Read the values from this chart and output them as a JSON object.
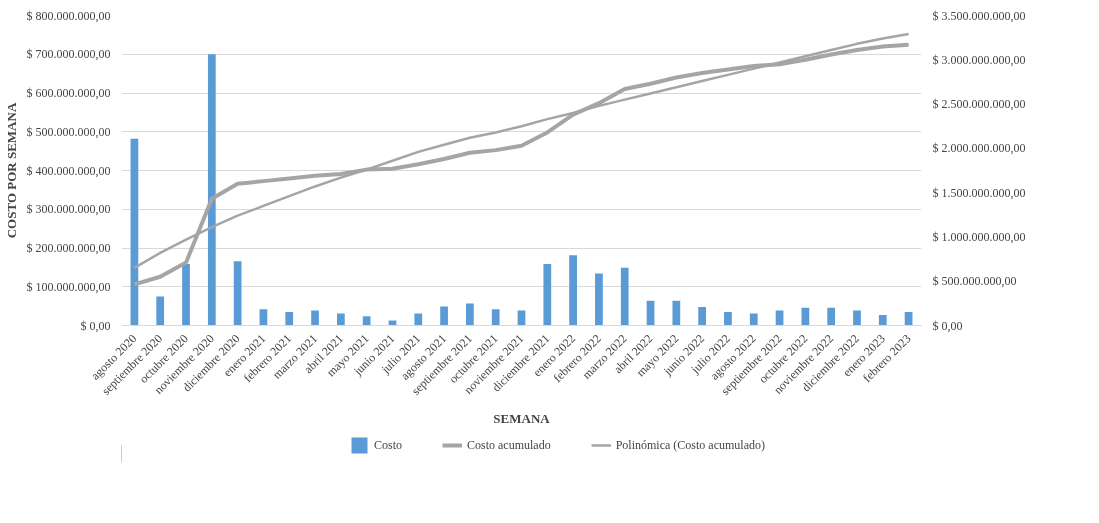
{
  "chart_data": {
    "type": "bar",
    "xlabel": "SEMANA",
    "ylabel": "COSTO POR SEMANA",
    "categories": [
      "agosto 2020",
      "septiembre 2020",
      "octubre 2020",
      "noviembre 2020",
      "diciembre 2020",
      "enero 2021",
      "febrero 2021",
      "marzo 2021",
      "abril 2021",
      "mayo 2021",
      "junio 2021",
      "julio 2021",
      "agosto 2021",
      "septiembre 2021",
      "octubre 2021",
      "noviembre 2021",
      "diciembre 2021",
      "enero 2022",
      "febrero 2022",
      "marzo 2022",
      "abril 2022",
      "mayo 2022",
      "junio 2022",
      "julio 2022",
      "agosto 2022",
      "septiembre 2022",
      "octubre 2022",
      "noviembre 2022",
      "diciembre 2022",
      "enero 2023",
      "febrero 2023"
    ],
    "series": [
      {
        "name": "Costo",
        "color": "#5b9bd5",
        "values": [
          482000000,
          75000000,
          159000000,
          700000000,
          166000000,
          42000000,
          35000000,
          39000000,
          31000000,
          24000000,
          13000000,
          31000000,
          49000000,
          57000000,
          42000000,
          39000000,
          159000000,
          181000000,
          134000000,
          149000000,
          64000000,
          64000000,
          48000000,
          35000000,
          31000000,
          39000000,
          46000000,
          46000000,
          39000000,
          27000000,
          35000000
        ]
      },
      {
        "name": "Costo acumulado",
        "type": "line",
        "axis": "y2",
        "color": "#a5a5a5",
        "values": [
          465000000,
          550000000,
          710000000,
          1430000000,
          1600000000,
          1630000000,
          1660000000,
          1690000000,
          1710000000,
          1760000000,
          1770000000,
          1820000000,
          1880000000,
          1950000000,
          1980000000,
          2030000000,
          2180000000,
          2380000000,
          2510000000,
          2670000000,
          2730000000,
          2800000000,
          2850000000,
          2890000000,
          2930000000,
          2950000000,
          3000000000,
          3060000000,
          3110000000,
          3150000000,
          3170000000
        ]
      },
      {
        "name": "Polinómica (Costo acumulado)",
        "type": "line",
        "axis": "y2",
        "color": "#a5a5a5",
        "values": [
          650000000,
          820000000,
          970000000,
          1110000000,
          1240000000,
          1350000000,
          1460000000,
          1570000000,
          1670000000,
          1760000000,
          1860000000,
          1960000000,
          2040000000,
          2120000000,
          2180000000,
          2250000000,
          2330000000,
          2400000000,
          2480000000,
          2550000000,
          2620000000,
          2690000000,
          2760000000,
          2830000000,
          2900000000,
          2970000000,
          3040000000,
          3110000000,
          3180000000,
          3240000000,
          3290000000
        ]
      }
    ],
    "ylim": [
      0,
      800000000
    ],
    "yticks": [
      {
        "value": 0,
        "label": "$ 0,00"
      },
      {
        "value": 100000000,
        "label": "$ 100.000.000,00"
      },
      {
        "value": 200000000,
        "label": "$ 200.000.000,00"
      },
      {
        "value": 300000000,
        "label": "$ 300.000.000,00"
      },
      {
        "value": 400000000,
        "label": "$ 400.000.000,00"
      },
      {
        "value": 500000000,
        "label": "$ 500.000.000,00"
      },
      {
        "value": 600000000,
        "label": "$ 600.000.000,00"
      },
      {
        "value": 700000000,
        "label": "$ 700.000.000,00"
      },
      {
        "value": 800000000,
        "label": "$ 800.000.000,00"
      }
    ],
    "y2lim": [
      0,
      3500000000
    ],
    "y2ticks": [
      {
        "value": 0,
        "label": "$ 0,00"
      },
      {
        "value": 500000000,
        "label": "$ 500.000.000,00"
      },
      {
        "value": 1000000000,
        "label": "$ 1.000.000.000,00"
      },
      {
        "value": 1500000000,
        "label": "$ 1.500.000.000,00"
      },
      {
        "value": 2000000000,
        "label": "$ 2.000.000.000,00"
      },
      {
        "value": 2500000000,
        "label": "$ 2.500.000.000,00"
      },
      {
        "value": 3000000000,
        "label": "$ 3.000.000.000,00"
      },
      {
        "value": 3500000000,
        "label": "$ 3.500.000.000,00"
      }
    ],
    "grid": "y",
    "legend": "bottom"
  }
}
